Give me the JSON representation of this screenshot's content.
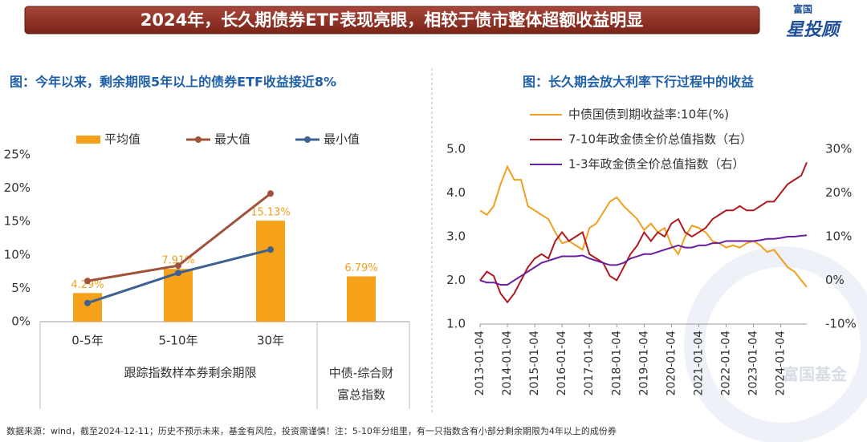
{
  "header": {
    "title": "2024年，长久期债券ETF表现亮眼，相较于债市整体超额收益明显",
    "logo_top": "富国",
    "logo_main": "星投顾"
  },
  "watermark": "富国基金",
  "footer": "数据来源：wind，截至2024-12-11；历史不预示未来，基金有风险，投资需谨慎！注：5-10年分组里，有一只指数含有小部分剩余期限为4年以上的成份券",
  "chart_data": [
    {
      "type": "bar",
      "title": "图：今年以来，剩余期限5年以上的债券ETF收益接近8%",
      "x_label": "跟踪指数样本券剩余期限",
      "categories": [
        "0-5年",
        "5-10年",
        "30年",
        "中债-综合财富总指数"
      ],
      "series": [
        {
          "name": "平均值",
          "color": "#f5a11a",
          "values": [
            4.29,
            7.91,
            15.13,
            6.79
          ],
          "value_labels": [
            "4.29%",
            "7.91%",
            "15.13%",
            "6.79%"
          ]
        },
        {
          "name": "最大值",
          "color": "#a0523a",
          "values": [
            6.1,
            8.4,
            19.2,
            null
          ]
        },
        {
          "name": "最小值",
          "color": "#3d6190",
          "values": [
            2.8,
            7.3,
            10.8,
            null
          ]
        }
      ],
      "ylim": [
        0,
        25
      ],
      "yticks": [
        {
          "value": 0,
          "label": "0%"
        },
        {
          "value": 5,
          "label": "5%"
        },
        {
          "value": 10,
          "label": "10%"
        },
        {
          "value": 15,
          "label": "15%"
        },
        {
          "value": 20,
          "label": "20%"
        },
        {
          "value": 25,
          "label": "25%"
        }
      ]
    },
    {
      "type": "line",
      "title": "图：长久期会放大利率下行过程中的收益",
      "x": [
        2013,
        2013.25,
        2013.5,
        2013.75,
        2014,
        2014.25,
        2014.5,
        2014.75,
        2015,
        2015.25,
        2015.5,
        2015.75,
        2016,
        2016.25,
        2016.5,
        2016.75,
        2017,
        2017.25,
        2017.5,
        2017.75,
        2018,
        2018.25,
        2018.5,
        2018.75,
        2019,
        2019.25,
        2019.5,
        2019.75,
        2020,
        2020.25,
        2020.5,
        2020.75,
        2021,
        2021.25,
        2021.5,
        2021.75,
        2022,
        2022.25,
        2022.5,
        2022.75,
        2023,
        2023.25,
        2023.5,
        2023.75,
        2024,
        2024.25,
        2024.5,
        2024.75,
        2024.95
      ],
      "series": [
        {
          "name": "中债国债到期收益率:10年(%)",
          "color": "#f0a020",
          "values": [
            3.6,
            3.5,
            3.7,
            4.2,
            4.6,
            4.3,
            4.3,
            3.7,
            3.6,
            3.5,
            3.4,
            3.1,
            2.85,
            2.9,
            2.8,
            2.7,
            3.2,
            3.3,
            3.55,
            3.8,
            3.9,
            3.7,
            3.55,
            3.4,
            3.15,
            3.3,
            3.1,
            3.2,
            2.8,
            2.6,
            3.0,
            3.25,
            3.2,
            3.1,
            2.9,
            2.85,
            2.75,
            2.8,
            2.75,
            2.85,
            2.9,
            2.8,
            2.65,
            2.7,
            2.5,
            2.3,
            2.2,
            2.0,
            1.85
          ]
        },
        {
          "name": "7-10年政金债全价总值指数（右）",
          "color": "#b0191e",
          "axis": "y2",
          "values": [
            0,
            2,
            1,
            -3,
            -5,
            -3,
            0,
            3,
            5,
            6,
            5,
            9,
            11,
            9,
            10,
            11,
            6,
            5,
            4,
            1,
            0,
            3,
            6,
            8,
            11,
            9,
            11,
            10,
            13,
            14,
            11,
            10,
            11,
            12,
            14,
            15,
            16,
            16,
            17,
            16,
            16,
            17,
            18,
            18,
            20,
            22,
            23,
            24,
            27
          ]
        },
        {
          "name": "1-3年政金债全价总值指数（右）",
          "color": "#6a1fa0",
          "axis": "y2",
          "values": [
            0,
            -0.5,
            -0.5,
            -1,
            -1,
            0,
            1,
            2,
            3,
            4,
            4.5,
            5,
            5.5,
            5.5,
            5.5,
            5.7,
            5,
            4.5,
            4,
            3.5,
            3.5,
            4,
            5,
            5.5,
            6,
            6,
            6.5,
            7,
            7.5,
            8,
            7.5,
            7.5,
            8,
            8,
            8.5,
            8.5,
            9,
            9,
            9,
            9,
            9,
            9.2,
            9.5,
            9.5,
            9.7,
            10,
            10,
            10.2,
            10.3
          ]
        }
      ],
      "xlim": [
        2013,
        2024.95
      ],
      "xticks": [
        {
          "value": 2013,
          "label": "2013-01-04"
        },
        {
          "value": 2014,
          "label": "2014-01-04"
        },
        {
          "value": 2015,
          "label": "2015-01-04"
        },
        {
          "value": 2016,
          "label": "2016-01-04"
        },
        {
          "value": 2017,
          "label": "2017-01-04"
        },
        {
          "value": 2018,
          "label": "2018-01-04"
        },
        {
          "value": 2019,
          "label": "2019-01-04"
        },
        {
          "value": 2020,
          "label": "2020-01-04"
        },
        {
          "value": 2021,
          "label": "2021-01-04"
        },
        {
          "value": 2022,
          "label": "2022-01-04"
        },
        {
          "value": 2023,
          "label": "2023-01-04"
        },
        {
          "value": 2024,
          "label": "2024-01-04"
        }
      ],
      "ylim": [
        1,
        5
      ],
      "yticks": [
        {
          "value": 1,
          "label": "1.0"
        },
        {
          "value": 2,
          "label": "2.0"
        },
        {
          "value": 3,
          "label": "3.0"
        },
        {
          "value": 4,
          "label": "4.0"
        },
        {
          "value": 5,
          "label": "5.0"
        }
      ],
      "y2lim": [
        -10,
        30
      ],
      "y2ticks": [
        {
          "value": -10,
          "label": "-10%"
        },
        {
          "value": 0,
          "label": "0%"
        },
        {
          "value": 10,
          "label": "10%"
        },
        {
          "value": 20,
          "label": "20%"
        },
        {
          "value": 30,
          "label": "30%"
        }
      ]
    }
  ]
}
